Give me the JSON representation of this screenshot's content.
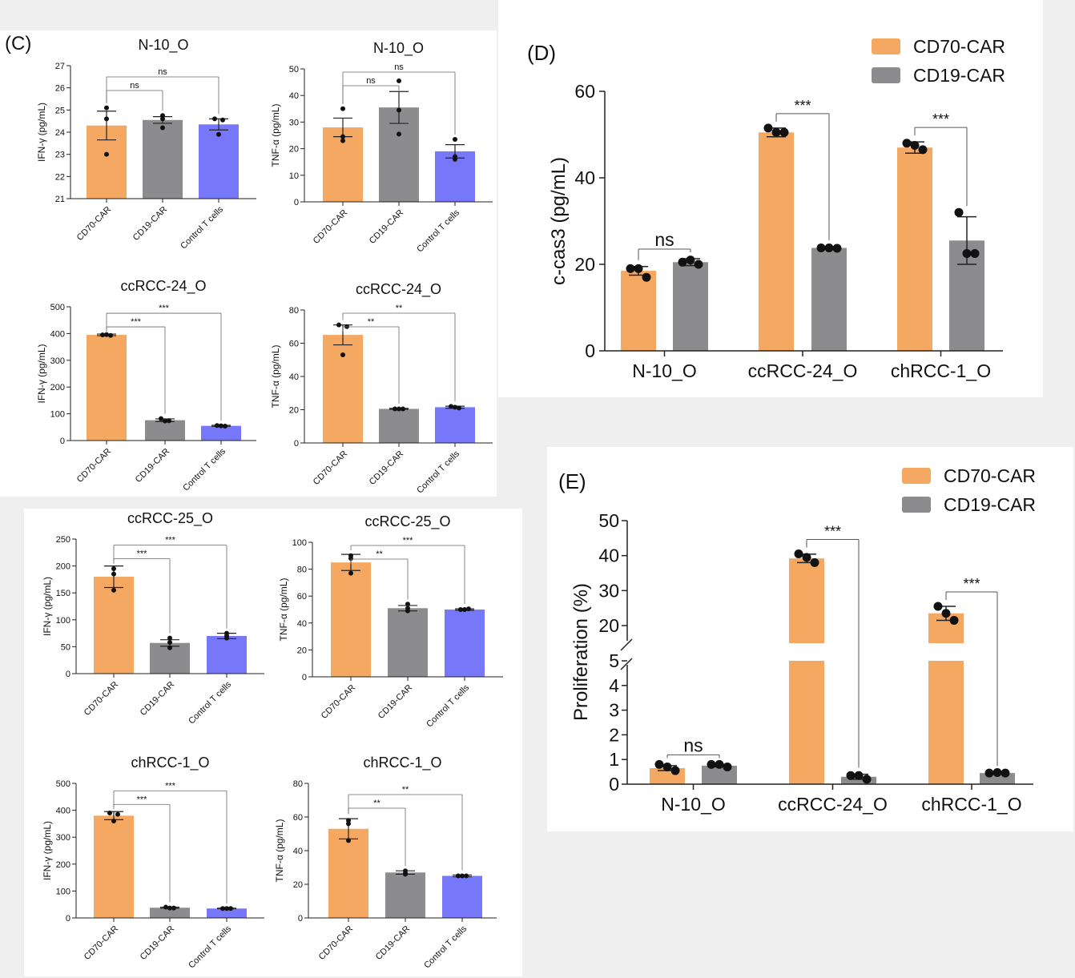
{
  "panel_labels": {
    "c": "(C)",
    "d": "(D)",
    "e": "(E)"
  },
  "colors": {
    "CD70-CAR": "#f4a862",
    "CD19-CAR": "#8c8c8e",
    "Control T cells": "#7777fa"
  },
  "chart_data": [
    {
      "id": "c1",
      "type": "bar",
      "title": "N-10_O",
      "ylabel": "IFN-γ (pg/mL)",
      "ylim": [
        21,
        27
      ],
      "yticks": [
        21,
        22,
        23,
        24,
        25,
        26,
        27
      ],
      "categories": [
        "CD70-CAR",
        "CD19-CAR",
        "Control T cells"
      ],
      "values": [
        24.3,
        24.55,
        24.35
      ],
      "errors": [
        0.65,
        0.15,
        0.25
      ],
      "points": [
        [
          25.1,
          24.6,
          23.0
        ],
        [
          24.75,
          24.6,
          24.2
        ],
        [
          24.6,
          24.55,
          23.9
        ]
      ],
      "significance": [
        {
          "from": 0,
          "to": 1,
          "label": "ns"
        },
        {
          "from": 0,
          "to": 2,
          "label": "ns"
        }
      ]
    },
    {
      "id": "c2",
      "type": "bar",
      "title": "N-10_O",
      "ylabel": "TNF-α (pg/mL)",
      "ylim": [
        0,
        50
      ],
      "yticks": [
        0,
        10,
        20,
        30,
        40,
        50
      ],
      "categories": [
        "CD70-CAR",
        "CD19-CAR",
        "Control T cells"
      ],
      "values": [
        28,
        35.5,
        19
      ],
      "errors": [
        3.5,
        6,
        2.5
      ],
      "points": [
        [
          35,
          24.5,
          23
        ],
        [
          45.5,
          34.5,
          25.5
        ],
        [
          23.5,
          17,
          16
        ]
      ],
      "significance": [
        {
          "from": 0,
          "to": 1,
          "label": "ns"
        },
        {
          "from": 0,
          "to": 2,
          "label": "ns"
        }
      ]
    },
    {
      "id": "c3",
      "type": "bar",
      "title": "ccRCC-24_O",
      "ylabel": "IFN-γ (pg/mL)",
      "ylim": [
        0,
        500
      ],
      "yticks": [
        0,
        100,
        200,
        300,
        400,
        500
      ],
      "categories": [
        "CD70-CAR",
        "CD19-CAR",
        "Control T cells"
      ],
      "values": [
        395,
        76,
        55
      ],
      "errors": [
        3,
        5,
        2
      ],
      "points": [
        [
          395,
          393,
          396
        ],
        [
          82,
          74,
          73
        ],
        [
          56,
          54,
          55
        ]
      ],
      "significance": [
        {
          "from": 0,
          "to": 1,
          "label": "***"
        },
        {
          "from": 0,
          "to": 2,
          "label": "***"
        }
      ]
    },
    {
      "id": "c4",
      "type": "bar",
      "title": "ccRCC-24_O",
      "ylabel": "TNF-α (pg/mL)",
      "ylim": [
        0,
        80
      ],
      "yticks": [
        0,
        20,
        40,
        60,
        80
      ],
      "categories": [
        "CD70-CAR",
        "CD19-CAR",
        "Control T cells"
      ],
      "values": [
        65,
        20.5,
        21.5
      ],
      "errors": [
        6,
        0.3,
        0.6
      ],
      "points": [
        [
          71,
          70,
          53
        ],
        [
          20.5,
          20.5,
          20.5
        ],
        [
          22,
          21,
          21.5
        ]
      ],
      "significance": [
        {
          "from": 0,
          "to": 1,
          "label": "**"
        },
        {
          "from": 0,
          "to": 2,
          "label": "**"
        }
      ]
    },
    {
      "id": "c5",
      "type": "bar",
      "title": "ccRCC-25_O",
      "ylabel": "IFN-γ (pg/mL)",
      "ylim": [
        0,
        250
      ],
      "yticks": [
        0,
        50,
        100,
        150,
        200,
        250
      ],
      "categories": [
        "CD70-CAR",
        "CD19-CAR",
        "Control T cells"
      ],
      "values": [
        180,
        57,
        70
      ],
      "errors": [
        20,
        6,
        5
      ],
      "points": [
        [
          195,
          185,
          155
        ],
        [
          66,
          58,
          48
        ],
        [
          75,
          70,
          66
        ]
      ],
      "significance": [
        {
          "from": 0,
          "to": 1,
          "label": "***"
        },
        {
          "from": 0,
          "to": 2,
          "label": "***"
        }
      ]
    },
    {
      "id": "c6",
      "type": "bar",
      "title": "ccRCC-25_O",
      "ylabel": "TNF-α (pg/mL)",
      "ylim": [
        0,
        100
      ],
      "yticks": [
        0,
        20,
        40,
        60,
        80,
        100
      ],
      "categories": [
        "CD70-CAR",
        "CD19-CAR",
        "Control T cells"
      ],
      "values": [
        85,
        51,
        50
      ],
      "errors": [
        6,
        2,
        0.5
      ],
      "points": [
        [
          90,
          88,
          77
        ],
        [
          54,
          51,
          49
        ],
        [
          50,
          50.5,
          50
        ]
      ],
      "significance": [
        {
          "from": 0,
          "to": 1,
          "label": "**"
        },
        {
          "from": 0,
          "to": 2,
          "label": "***"
        }
      ]
    },
    {
      "id": "c7",
      "type": "bar",
      "title": "chRCC-1_O",
      "ylabel": "IFN-γ (pg/mL)",
      "ylim": [
        0,
        500
      ],
      "yticks": [
        0,
        100,
        200,
        300,
        400,
        500
      ],
      "categories": [
        "CD70-CAR",
        "CD19-CAR",
        "Control T cells"
      ],
      "values": [
        380,
        38,
        35
      ],
      "errors": [
        15,
        2,
        1
      ],
      "points": [
        [
          390,
          385,
          360
        ],
        [
          40,
          37,
          37
        ],
        [
          35,
          35,
          35
        ]
      ],
      "significance": [
        {
          "from": 0,
          "to": 1,
          "label": "***"
        },
        {
          "from": 0,
          "to": 2,
          "label": "***"
        }
      ]
    },
    {
      "id": "c8",
      "type": "bar",
      "title": "chRCC-1_O",
      "ylabel": "TNF-α (pg/mL)",
      "ylim": [
        0,
        80
      ],
      "yticks": [
        0,
        20,
        40,
        60,
        80
      ],
      "categories": [
        "CD70-CAR",
        "CD19-CAR",
        "Control T cells"
      ],
      "values": [
        53,
        27,
        25
      ],
      "errors": [
        6,
        1,
        0.5
      ],
      "points": [
        [
          58,
          56,
          46
        ],
        [
          28,
          26,
          26.5
        ],
        [
          25,
          25,
          25
        ]
      ],
      "significance": [
        {
          "from": 0,
          "to": 1,
          "label": "**"
        },
        {
          "from": 0,
          "to": 2,
          "label": "**"
        }
      ]
    },
    {
      "id": "d",
      "type": "bar",
      "title": "",
      "ylabel": "c-cas3 (pg/mL)",
      "ylim": [
        0,
        60
      ],
      "yticks": [
        0,
        20,
        40,
        60
      ],
      "categories": [
        "N-10_O",
        "ccRCC-24_O",
        "chRCC-1_O"
      ],
      "series": [
        {
          "name": "CD70-CAR",
          "values": [
            18.5,
            50.5,
            47
          ],
          "errors": [
            1,
            1,
            1.3
          ],
          "points": [
            [
              19,
              17,
              19
            ],
            [
              51.5,
              50.5,
              50.5
            ],
            [
              48,
              46.5,
              47.5
            ]
          ]
        },
        {
          "name": "CD19-CAR",
          "values": [
            20.5,
            23.8,
            25.5
          ],
          "errors": [
            0.8,
            0.3,
            5.5
          ],
          "points": [
            [
              20.5,
              20,
              21
            ],
            [
              23.8,
              23.7,
              23.8
            ],
            [
              32,
              22.5,
              22.5
            ]
          ]
        }
      ],
      "significance": [
        {
          "group": 0,
          "label": "ns"
        },
        {
          "group": 1,
          "label": "***"
        },
        {
          "group": 2,
          "label": "***"
        }
      ],
      "legend": "top-right"
    },
    {
      "id": "e",
      "type": "bar",
      "title": "",
      "ylabel": "Proliferation (%)",
      "y_axis_break": [
        5,
        20
      ],
      "yticks": [
        0,
        1,
        2,
        3,
        4,
        5,
        20,
        30,
        40,
        50
      ],
      "categories": [
        "N-10_O",
        "ccRCC-24_O",
        "chRCC-1_O"
      ],
      "series": [
        {
          "name": "CD70-CAR",
          "values": [
            0.65,
            39.2,
            23.5
          ],
          "errors": [
            0.1,
            1.2,
            2
          ],
          "points": [
            [
              0.8,
              0.55,
              0.7
            ],
            [
              40.5,
              38,
              39.5
            ],
            [
              25.5,
              21.5,
              23.5
            ]
          ]
        },
        {
          "name": "CD19-CAR",
          "values": [
            0.75,
            0.3,
            0.45
          ],
          "errors": [
            0.05,
            0.1,
            0.03
          ],
          "points": [
            [
              0.8,
              0.7,
              0.8
            ],
            [
              0.35,
              0.2,
              0.35
            ],
            [
              0.45,
              0.45,
              0.47
            ]
          ]
        }
      ],
      "significance": [
        {
          "group": 0,
          "label": "ns"
        },
        {
          "group": 1,
          "label": "***"
        },
        {
          "group": 2,
          "label": "***"
        }
      ],
      "legend": "top-right"
    }
  ]
}
